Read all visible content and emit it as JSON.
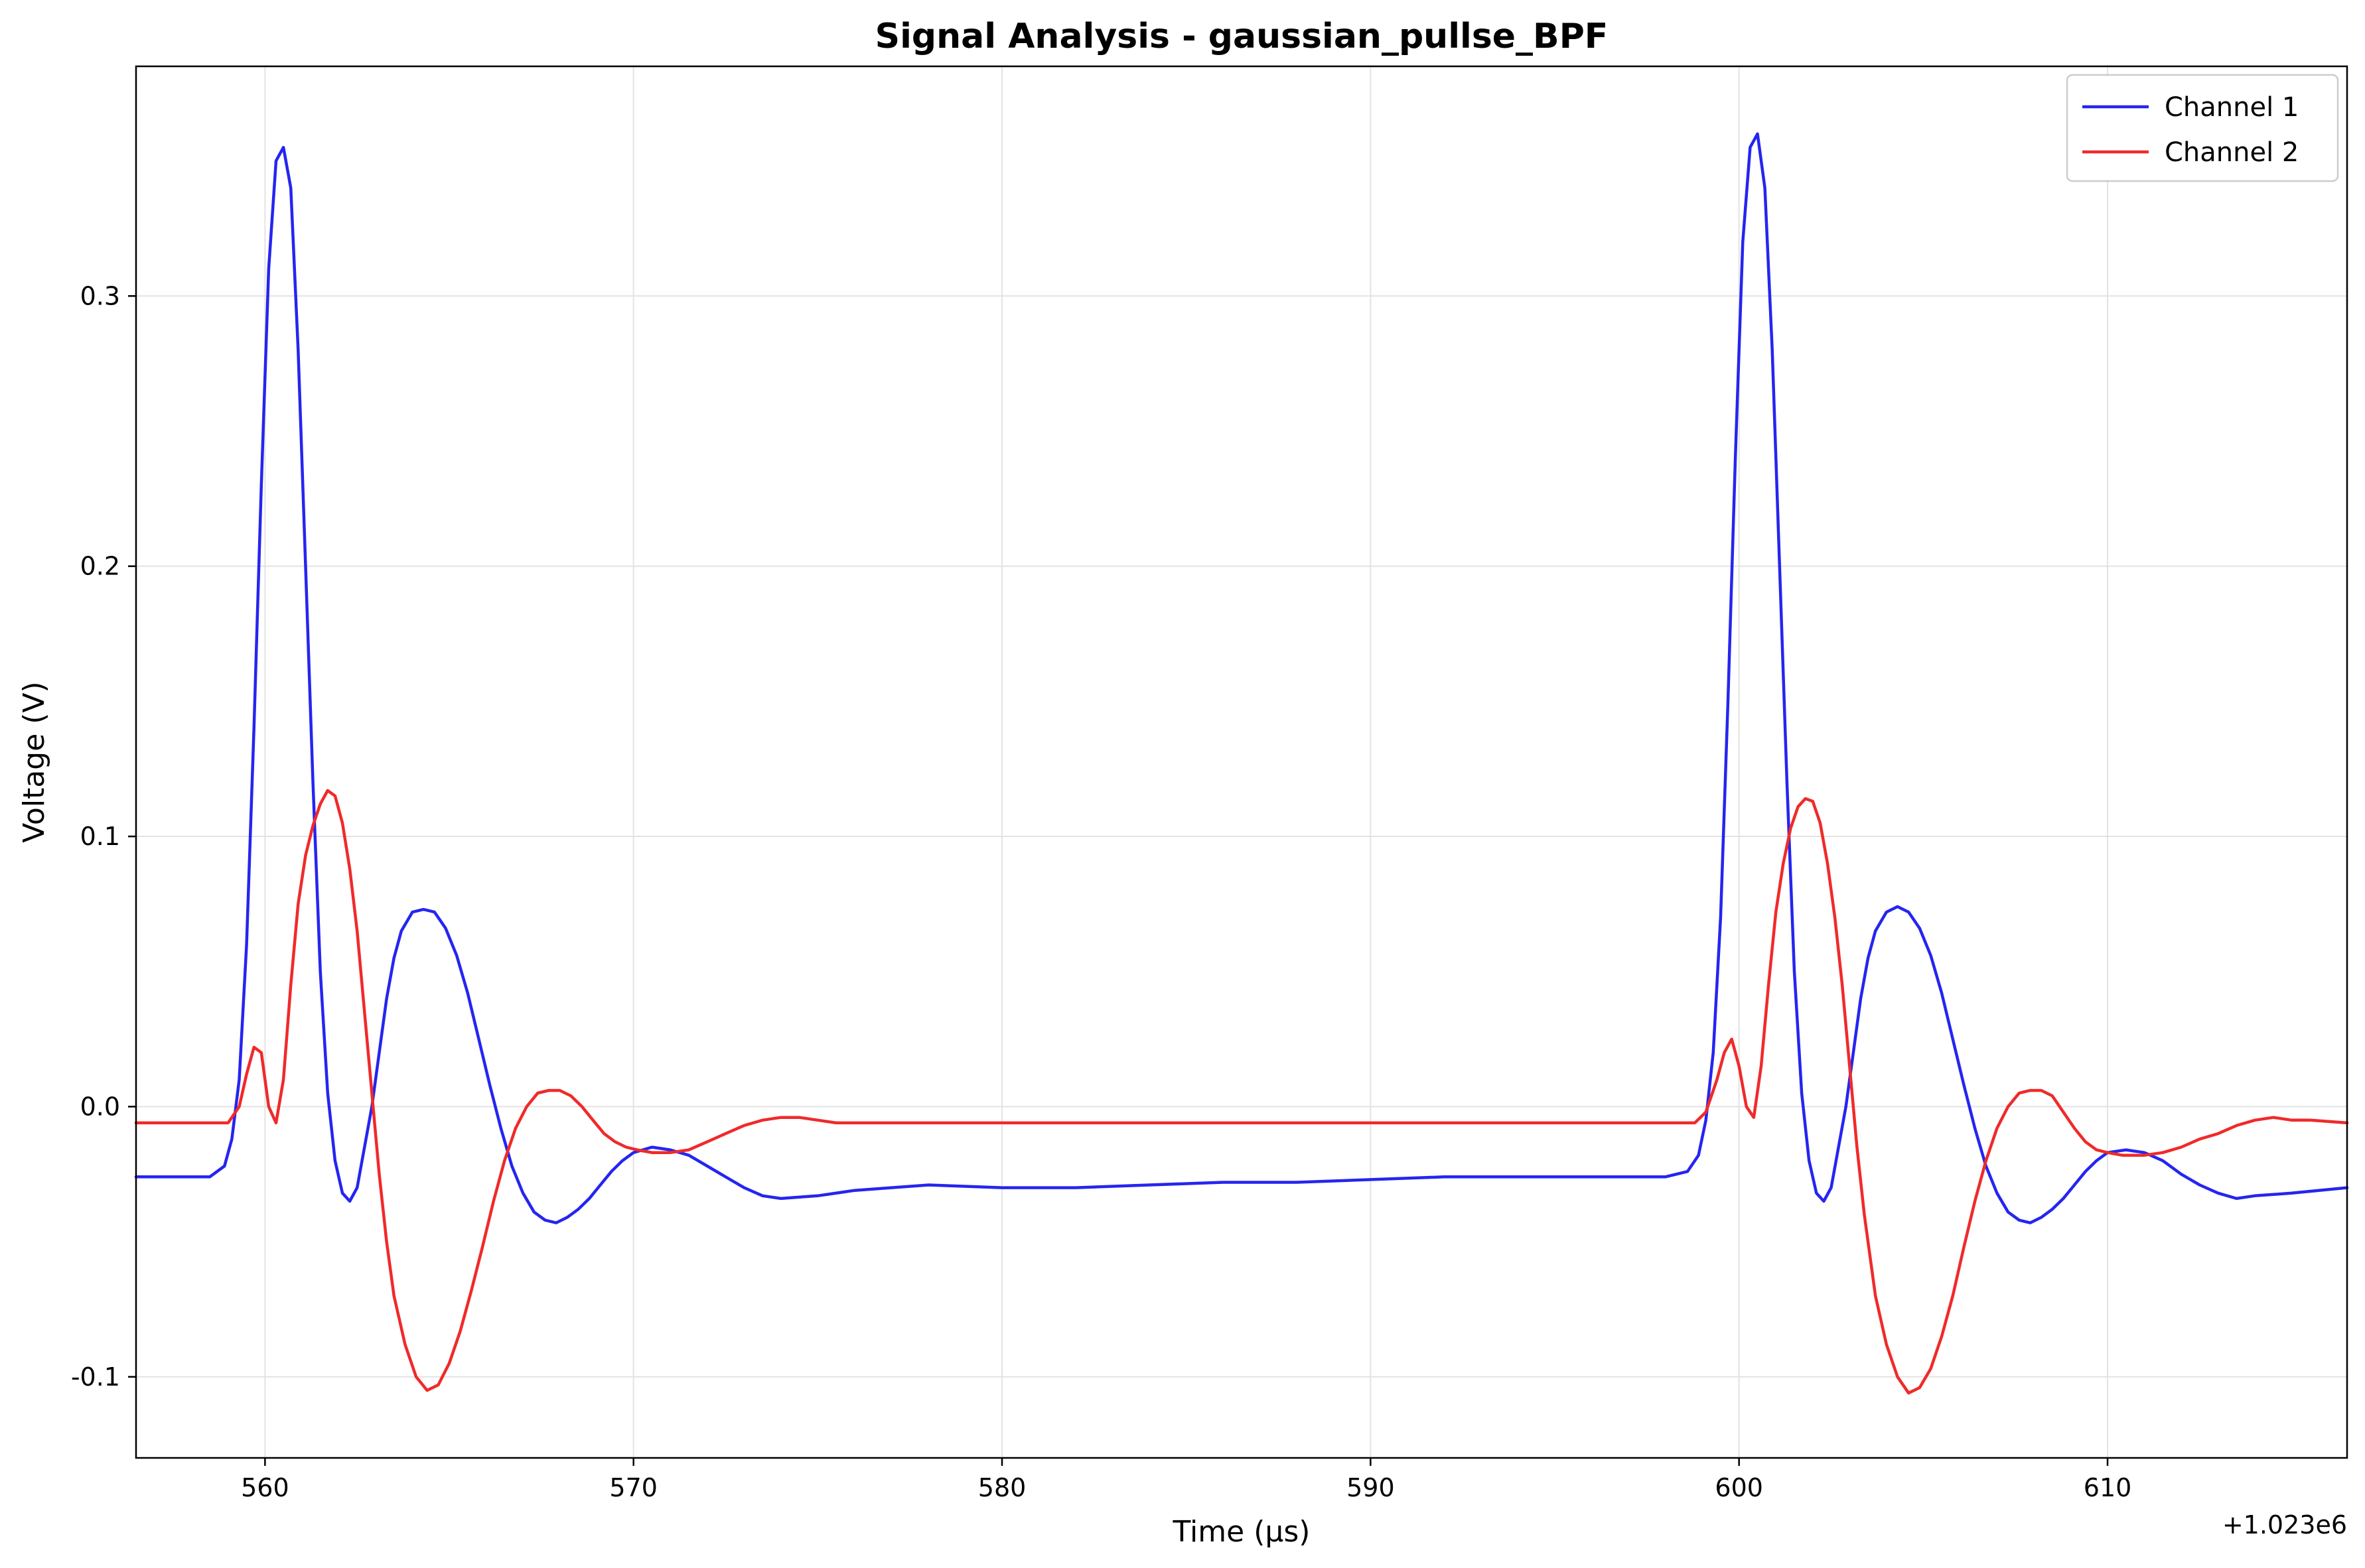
{
  "chart_data": {
    "type": "line",
    "title": "Signal Analysis - gaussian_pullse_BPF",
    "xlabel": "Time (µs)",
    "ylabel": "Voltage (V)",
    "x_offset_label": "+1.023e6",
    "xlim": [
      556.5,
      616.5
    ],
    "ylim": [
      -0.13,
      0.385
    ],
    "x_ticks": [
      560,
      570,
      580,
      590,
      600,
      610
    ],
    "x_tick_labels": [
      "560",
      "570",
      "580",
      "590",
      "600",
      "610"
    ],
    "y_ticks": [
      -0.1,
      0.0,
      0.1,
      0.2,
      0.3
    ],
    "y_tick_labels": [
      "-0.1",
      "0.0",
      "0.1",
      "0.2",
      "0.3"
    ],
    "grid": true,
    "legend_position": "top-right",
    "series": [
      {
        "name": "Channel 1",
        "color": "#2525f0",
        "x": [
          556.5,
          558.5,
          558.9,
          559.1,
          559.3,
          559.5,
          559.7,
          559.9,
          560.1,
          560.3,
          560.5,
          560.7,
          560.9,
          561.1,
          561.3,
          561.5,
          561.7,
          561.9,
          562.1,
          562.3,
          562.5,
          562.7,
          562.9,
          563.1,
          563.3,
          563.5,
          563.7,
          564.0,
          564.3,
          564.6,
          564.9,
          565.2,
          565.5,
          565.8,
          566.1,
          566.4,
          566.7,
          567.0,
          567.3,
          567.6,
          567.9,
          568.2,
          568.5,
          568.8,
          569.1,
          569.4,
          569.7,
          570.0,
          570.5,
          571.0,
          571.5,
          572.0,
          572.5,
          573.0,
          573.5,
          574.0,
          575.0,
          576.0,
          577.0,
          578.0,
          580.0,
          582.0,
          584.0,
          586.0,
          588.0,
          590.0,
          592.0,
          594.0,
          596.0,
          598.0,
          598.6,
          598.9,
          599.1,
          599.3,
          599.5,
          599.7,
          599.9,
          600.1,
          600.3,
          600.5,
          600.7,
          600.9,
          601.1,
          601.3,
          601.5,
          601.7,
          601.9,
          602.1,
          602.3,
          602.5,
          602.7,
          602.9,
          603.1,
          603.3,
          603.5,
          603.7,
          604.0,
          604.3,
          604.6,
          604.9,
          605.2,
          605.5,
          605.8,
          606.1,
          606.4,
          606.7,
          607.0,
          607.3,
          607.6,
          607.9,
          608.2,
          608.5,
          608.8,
          609.1,
          609.4,
          609.7,
          610.0,
          610.5,
          611.0,
          611.5,
          612.0,
          612.5,
          613.0,
          613.5,
          614.0,
          615.0,
          616.5
        ],
        "y": [
          -0.026,
          -0.026,
          -0.022,
          -0.012,
          0.01,
          0.06,
          0.14,
          0.23,
          0.31,
          0.35,
          0.355,
          0.34,
          0.28,
          0.2,
          0.12,
          0.05,
          0.005,
          -0.02,
          -0.032,
          -0.035,
          -0.03,
          -0.015,
          0.0,
          0.02,
          0.04,
          0.055,
          0.065,
          0.072,
          0.073,
          0.072,
          0.066,
          0.056,
          0.042,
          0.025,
          0.008,
          -0.008,
          -0.022,
          -0.032,
          -0.039,
          -0.042,
          -0.043,
          -0.041,
          -0.038,
          -0.034,
          -0.029,
          -0.024,
          -0.02,
          -0.017,
          -0.015,
          -0.016,
          -0.018,
          -0.022,
          -0.026,
          -0.03,
          -0.033,
          -0.034,
          -0.033,
          -0.031,
          -0.03,
          -0.029,
          -0.03,
          -0.03,
          -0.029,
          -0.028,
          -0.028,
          -0.027,
          -0.026,
          -0.026,
          -0.026,
          -0.026,
          -0.024,
          -0.018,
          -0.005,
          0.02,
          0.07,
          0.15,
          0.24,
          0.32,
          0.355,
          0.36,
          0.34,
          0.28,
          0.2,
          0.12,
          0.05,
          0.005,
          -0.02,
          -0.032,
          -0.035,
          -0.03,
          -0.015,
          0.0,
          0.02,
          0.04,
          0.055,
          0.065,
          0.072,
          0.074,
          0.072,
          0.066,
          0.056,
          0.042,
          0.025,
          0.008,
          -0.008,
          -0.022,
          -0.032,
          -0.039,
          -0.042,
          -0.043,
          -0.041,
          -0.038,
          -0.034,
          -0.029,
          -0.024,
          -0.02,
          -0.017,
          -0.016,
          -0.017,
          -0.02,
          -0.025,
          -0.029,
          -0.032,
          -0.034,
          -0.033,
          -0.032,
          -0.03
        ]
      },
      {
        "name": "Channel 2",
        "color": "#f02a2a",
        "x": [
          556.5,
          559.0,
          559.3,
          559.5,
          559.7,
          559.9,
          560.1,
          560.3,
          560.5,
          560.7,
          560.9,
          561.1,
          561.3,
          561.5,
          561.7,
          561.9,
          562.1,
          562.3,
          562.5,
          562.7,
          562.9,
          563.1,
          563.3,
          563.5,
          563.8,
          564.1,
          564.4,
          564.7,
          565.0,
          565.3,
          565.6,
          565.9,
          566.2,
          566.5,
          566.8,
          567.1,
          567.4,
          567.7,
          568.0,
          568.3,
          568.6,
          568.9,
          569.2,
          569.5,
          569.8,
          570.1,
          570.5,
          571.0,
          571.5,
          572.0,
          572.5,
          573.0,
          573.5,
          574.0,
          574.5,
          575.0,
          575.5,
          576.0,
          580.0,
          585.0,
          590.0,
          595.0,
          598.8,
          599.1,
          599.4,
          599.6,
          599.8,
          600.0,
          600.2,
          600.4,
          600.6,
          600.8,
          601.0,
          601.2,
          601.4,
          601.6,
          601.8,
          602.0,
          602.2,
          602.4,
          602.6,
          602.8,
          603.0,
          603.2,
          603.4,
          603.7,
          604.0,
          604.3,
          604.6,
          604.9,
          605.2,
          605.5,
          605.8,
          606.1,
          606.4,
          606.7,
          607.0,
          607.3,
          607.6,
          607.9,
          608.2,
          608.5,
          608.8,
          609.1,
          609.4,
          609.7,
          610.0,
          610.4,
          611.0,
          611.5,
          612.0,
          612.5,
          613.0,
          613.5,
          614.0,
          614.5,
          615.0,
          615.5,
          616.5
        ],
        "y": [
          -0.006,
          -0.006,
          0.0,
          0.012,
          0.022,
          0.02,
          0.0,
          -0.006,
          0.01,
          0.045,
          0.075,
          0.093,
          0.104,
          0.112,
          0.117,
          0.115,
          0.105,
          0.088,
          0.065,
          0.035,
          0.005,
          -0.025,
          -0.05,
          -0.07,
          -0.088,
          -0.1,
          -0.105,
          -0.103,
          -0.095,
          -0.083,
          -0.068,
          -0.052,
          -0.035,
          -0.02,
          -0.008,
          0.0,
          0.005,
          0.006,
          0.006,
          0.004,
          0.0,
          -0.005,
          -0.01,
          -0.013,
          -0.015,
          -0.016,
          -0.017,
          -0.017,
          -0.016,
          -0.013,
          -0.01,
          -0.007,
          -0.005,
          -0.004,
          -0.004,
          -0.005,
          -0.006,
          -0.006,
          -0.006,
          -0.006,
          -0.006,
          -0.006,
          -0.006,
          -0.002,
          0.01,
          0.02,
          0.025,
          0.015,
          0.0,
          -0.004,
          0.015,
          0.045,
          0.072,
          0.09,
          0.103,
          0.111,
          0.114,
          0.113,
          0.105,
          0.09,
          0.07,
          0.045,
          0.015,
          -0.015,
          -0.04,
          -0.07,
          -0.088,
          -0.1,
          -0.106,
          -0.104,
          -0.097,
          -0.085,
          -0.07,
          -0.052,
          -0.035,
          -0.02,
          -0.008,
          0.0,
          0.005,
          0.006,
          0.006,
          0.004,
          -0.002,
          -0.008,
          -0.013,
          -0.016,
          -0.017,
          -0.018,
          -0.018,
          -0.017,
          -0.015,
          -0.012,
          -0.01,
          -0.007,
          -0.005,
          -0.004,
          -0.005,
          -0.005,
          -0.006
        ]
      }
    ]
  }
}
